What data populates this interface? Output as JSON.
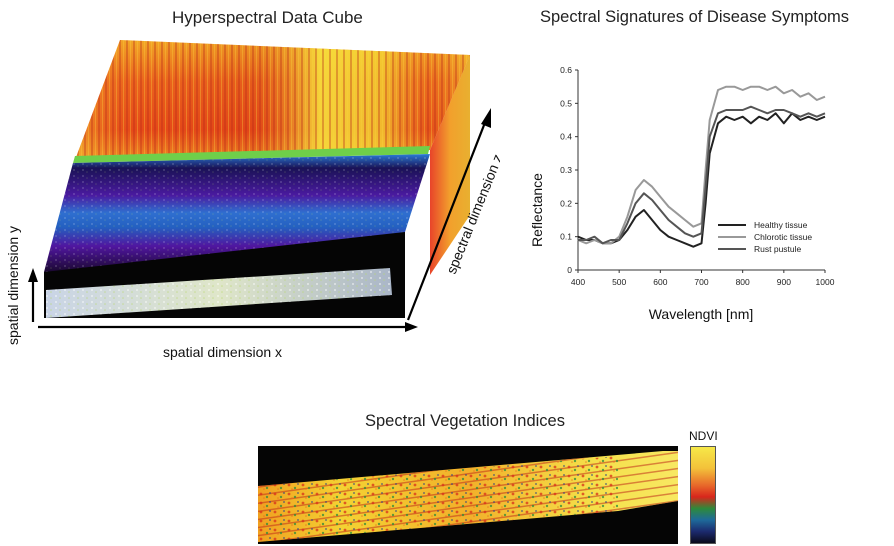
{
  "cube": {
    "title": "Hyperspectral Data Cube",
    "axis_x": "spatial dimension x",
    "axis_y": "spatial dimension y",
    "axis_z": "spectral dimension z"
  },
  "vi": {
    "title": "Spectral Vegetation Indices",
    "colorbar_label": "NDVI"
  },
  "chart_data": {
    "type": "line",
    "title": "Spectral Signatures of Disease Symptoms",
    "xlabel": "Wavelength [nm]",
    "ylabel": "Reflectance",
    "xlim": [
      400,
      1000
    ],
    "ylim": [
      0,
      0.6
    ],
    "xticks": [
      400,
      500,
      600,
      700,
      800,
      900,
      1000
    ],
    "yticks": [
      0,
      0.1,
      0.2,
      0.3,
      0.4,
      0.5,
      0.6
    ],
    "legend_position": "lower-right",
    "grid": false,
    "series": [
      {
        "name": "Healthy tissue",
        "color": "#222222",
        "x": [
          400,
          420,
          440,
          460,
          480,
          500,
          520,
          540,
          560,
          580,
          600,
          620,
          640,
          660,
          680,
          700,
          710,
          720,
          740,
          760,
          780,
          800,
          820,
          840,
          860,
          880,
          900,
          920,
          940,
          960,
          980,
          1000
        ],
        "y": [
          0.1,
          0.09,
          0.09,
          0.08,
          0.08,
          0.09,
          0.12,
          0.16,
          0.18,
          0.15,
          0.12,
          0.1,
          0.09,
          0.08,
          0.07,
          0.08,
          0.2,
          0.35,
          0.44,
          0.46,
          0.45,
          0.46,
          0.44,
          0.46,
          0.45,
          0.47,
          0.44,
          0.47,
          0.45,
          0.46,
          0.45,
          0.46
        ]
      },
      {
        "name": "Chlorotic tissue",
        "color": "#999999",
        "x": [
          400,
          420,
          440,
          460,
          480,
          500,
          520,
          540,
          560,
          580,
          600,
          620,
          640,
          660,
          680,
          700,
          710,
          720,
          740,
          760,
          780,
          800,
          820,
          840,
          860,
          880,
          900,
          920,
          940,
          960,
          980,
          1000
        ],
        "y": [
          0.09,
          0.08,
          0.09,
          0.08,
          0.08,
          0.1,
          0.16,
          0.24,
          0.27,
          0.25,
          0.22,
          0.19,
          0.17,
          0.15,
          0.13,
          0.14,
          0.3,
          0.45,
          0.54,
          0.55,
          0.55,
          0.54,
          0.55,
          0.55,
          0.54,
          0.55,
          0.53,
          0.54,
          0.52,
          0.53,
          0.51,
          0.52
        ]
      },
      {
        "name": "Rust pustule",
        "color": "#555555",
        "x": [
          400,
          420,
          440,
          460,
          480,
          500,
          520,
          540,
          560,
          580,
          600,
          620,
          640,
          660,
          680,
          700,
          710,
          720,
          740,
          760,
          780,
          800,
          820,
          840,
          860,
          880,
          900,
          920,
          940,
          960,
          980,
          1000
        ],
        "y": [
          0.09,
          0.09,
          0.1,
          0.08,
          0.09,
          0.09,
          0.14,
          0.2,
          0.23,
          0.21,
          0.18,
          0.15,
          0.13,
          0.11,
          0.1,
          0.11,
          0.25,
          0.4,
          0.47,
          0.48,
          0.48,
          0.48,
          0.49,
          0.48,
          0.47,
          0.48,
          0.48,
          0.47,
          0.46,
          0.47,
          0.46,
          0.47
        ]
      }
    ]
  }
}
